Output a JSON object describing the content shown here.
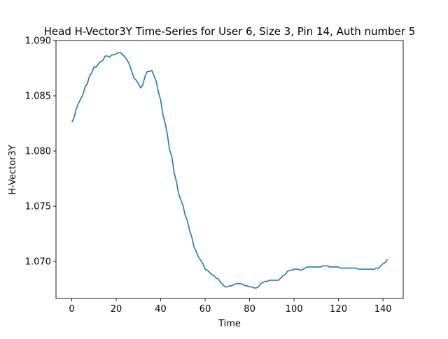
{
  "chart_data": {
    "type": "line",
    "title": "Head H-Vector3Y Time-Series for User 6, Size 3, Pin 14, Auth number 5",
    "xlabel": "Time",
    "ylabel": "H-Vector3Y",
    "xlim": [
      -7.1,
      149.1
    ],
    "ylim": [
      1.06665,
      1.09
    ],
    "x_ticks": [
      0,
      20,
      40,
      60,
      80,
      100,
      120,
      140
    ],
    "y_ticks": [
      1.07,
      1.075,
      1.08,
      1.085,
      1.09
    ],
    "y_tick_labels": [
      "1.070",
      "1.075",
      "1.080",
      "1.085",
      "1.090"
    ],
    "grid": false,
    "series": [
      {
        "color": "#1f77b4",
        "points": [
          [
            0,
            1.0826
          ],
          [
            1,
            1.083
          ],
          [
            2,
            1.0838
          ],
          [
            3,
            1.0843
          ],
          [
            4,
            1.0847
          ],
          [
            5,
            1.0851
          ],
          [
            6,
            1.0858
          ],
          [
            7,
            1.0861
          ],
          [
            8,
            1.0868
          ],
          [
            9,
            1.0871
          ],
          [
            10,
            1.0876
          ],
          [
            11,
            1.0876
          ],
          [
            12,
            1.0879
          ],
          [
            13,
            1.0881
          ],
          [
            14,
            1.0882
          ],
          [
            15,
            1.0886
          ],
          [
            16,
            1.0886
          ],
          [
            17,
            1.0885
          ],
          [
            18,
            1.0887
          ],
          [
            19,
            1.0887
          ],
          [
            20,
            1.0888
          ],
          [
            21,
            1.0889
          ],
          [
            22,
            1.0889
          ],
          [
            23,
            1.0887
          ],
          [
            24,
            1.0885
          ],
          [
            25,
            1.0882
          ],
          [
            26,
            1.0878
          ],
          [
            27,
            1.0872
          ],
          [
            28,
            1.0866
          ],
          [
            29,
            1.0864
          ],
          [
            30,
            1.0861
          ],
          [
            31,
            1.0857
          ],
          [
            32,
            1.086
          ],
          [
            33,
            1.0868
          ],
          [
            34,
            1.0872
          ],
          [
            35,
            1.0872
          ],
          [
            36,
            1.0873
          ],
          [
            37,
            1.0868
          ],
          [
            38,
            1.0863
          ],
          [
            39,
            1.0853
          ],
          [
            40,
            1.0846
          ],
          [
            41,
            1.0833
          ],
          [
            42,
            1.0825
          ],
          [
            43,
            1.0815
          ],
          [
            44,
            1.0801
          ],
          [
            45,
            1.0795
          ],
          [
            46,
            1.0781
          ],
          [
            47,
            1.0773
          ],
          [
            48,
            1.0762
          ],
          [
            49,
            1.0756
          ],
          [
            50,
            1.0751
          ],
          [
            51,
            1.0742
          ],
          [
            52,
            1.0737
          ],
          [
            53,
            1.0728
          ],
          [
            54,
            1.0722
          ],
          [
            55,
            1.0713
          ],
          [
            56,
            1.0709
          ],
          [
            57,
            1.0704
          ],
          [
            58,
            1.0701
          ],
          [
            59,
            1.0698
          ],
          [
            60,
            1.0693
          ],
          [
            61,
            1.0692
          ],
          [
            62,
            1.069
          ],
          [
            63,
            1.0688
          ],
          [
            64,
            1.0687
          ],
          [
            65,
            1.0685
          ],
          [
            66,
            1.0684
          ],
          [
            67,
            1.0681
          ],
          [
            68,
            1.0679
          ],
          [
            69,
            1.0677
          ],
          [
            70,
            1.0677
          ],
          [
            71,
            1.0678
          ],
          [
            72,
            1.0678
          ],
          [
            73,
            1.0679
          ],
          [
            74,
            1.068
          ],
          [
            75,
            1.068
          ],
          [
            76,
            1.068
          ],
          [
            77,
            1.0679
          ],
          [
            78,
            1.0678
          ],
          [
            79,
            1.0678
          ],
          [
            80,
            1.0677
          ],
          [
            81,
            1.0677
          ],
          [
            82,
            1.0676
          ],
          [
            83,
            1.0676
          ],
          [
            84,
            1.0677
          ],
          [
            85,
            1.068
          ],
          [
            86,
            1.0681
          ],
          [
            87,
            1.0682
          ],
          [
            88,
            1.0682
          ],
          [
            89,
            1.0683
          ],
          [
            90,
            1.0683
          ],
          [
            91,
            1.0683
          ],
          [
            92,
            1.0683
          ],
          [
            93,
            1.0683
          ],
          [
            94,
            1.0685
          ],
          [
            95,
            1.0687
          ],
          [
            96,
            1.0688
          ],
          [
            97,
            1.0691
          ],
          [
            98,
            1.0692
          ],
          [
            99,
            1.0692
          ],
          [
            100,
            1.0693
          ],
          [
            101,
            1.0693
          ],
          [
            102,
            1.0693
          ],
          [
            103,
            1.0692
          ],
          [
            104,
            1.0693
          ],
          [
            105,
            1.0694
          ],
          [
            106,
            1.0695
          ],
          [
            107,
            1.0695
          ],
          [
            108,
            1.0695
          ],
          [
            109,
            1.0695
          ],
          [
            110,
            1.0695
          ],
          [
            111,
            1.0695
          ],
          [
            112,
            1.0695
          ],
          [
            113,
            1.0696
          ],
          [
            114,
            1.0696
          ],
          [
            115,
            1.0696
          ],
          [
            116,
            1.0695
          ],
          [
            117,
            1.0695
          ],
          [
            118,
            1.0695
          ],
          [
            119,
            1.0695
          ],
          [
            120,
            1.0695
          ],
          [
            121,
            1.0694
          ],
          [
            122,
            1.0694
          ],
          [
            123,
            1.0694
          ],
          [
            124,
            1.0694
          ],
          [
            125,
            1.0694
          ],
          [
            126,
            1.0694
          ],
          [
            127,
            1.0694
          ],
          [
            128,
            1.0694
          ],
          [
            129,
            1.0693
          ],
          [
            130,
            1.0693
          ],
          [
            131,
            1.0693
          ],
          [
            132,
            1.0693
          ],
          [
            133,
            1.0693
          ],
          [
            134,
            1.0693
          ],
          [
            135,
            1.0693
          ],
          [
            136,
            1.0693
          ],
          [
            137,
            1.0694
          ],
          [
            138,
            1.0694
          ],
          [
            139,
            1.0696
          ],
          [
            140,
            1.0698
          ],
          [
            141,
            1.0699
          ],
          [
            142,
            1.0702
          ]
        ]
      }
    ]
  }
}
